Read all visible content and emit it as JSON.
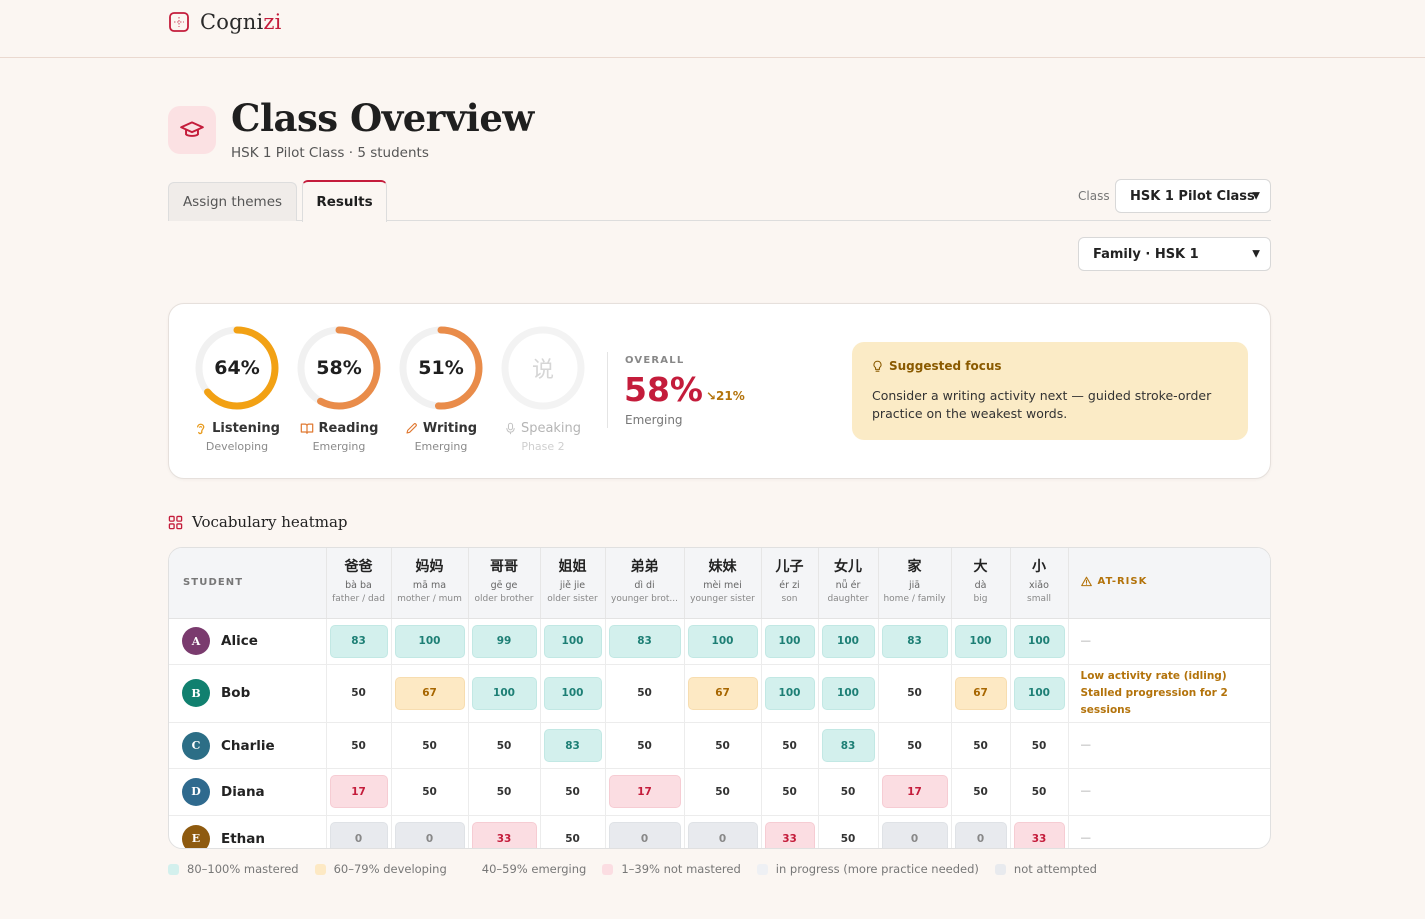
{
  "app": {
    "name_main": "Cogni",
    "name_accent": "zi"
  },
  "header": {
    "title": "Class Overview",
    "subtitle": "HSK 1 Pilot Class · 5 students"
  },
  "tabs": [
    {
      "label": "Assign themes",
      "active": false
    },
    {
      "label": "Results",
      "active": true
    }
  ],
  "filters": {
    "class_label": "Class",
    "class_value": "HSK 1 Pilot Class",
    "theme_value": "Family · HSK 1"
  },
  "skills": [
    {
      "name": "Listening",
      "pct": "64%",
      "value": 64,
      "level": "Developing",
      "color": "#f2a114",
      "icon": "ear-icon"
    },
    {
      "name": "Reading",
      "pct": "58%",
      "value": 58,
      "level": "Emerging",
      "color": "#e98c4a",
      "icon": "book-icon"
    },
    {
      "name": "Writing",
      "pct": "51%",
      "value": 51,
      "level": "Emerging",
      "color": "#e98c4a",
      "icon": "pencil-icon"
    },
    {
      "name": "Speaking",
      "pct": "说",
      "value": 0,
      "level": "Phase 2",
      "color": "#d6d6d6",
      "icon": "microphone-icon"
    }
  ],
  "overall": {
    "label": "OVERALL",
    "value": "58%",
    "trend": "↘21%",
    "level": "Emerging"
  },
  "focus": {
    "title": "Suggested focus",
    "text": "Consider a writing activity next — guided stroke-order practice on the weakest words."
  },
  "heatmap": {
    "title": "Vocabulary heatmap",
    "student_header": "STUDENT",
    "risk_header": "AT-RISK",
    "words": [
      {
        "hanzi": "爸爸",
        "pinyin": "bà ba",
        "meaning": "father / dad"
      },
      {
        "hanzi": "妈妈",
        "pinyin": "mā ma",
        "meaning": "mother / mum"
      },
      {
        "hanzi": "哥哥",
        "pinyin": "gē ge",
        "meaning": "older brother"
      },
      {
        "hanzi": "姐姐",
        "pinyin": "jiě jie",
        "meaning": "older sister"
      },
      {
        "hanzi": "弟弟",
        "pinyin": "dì di",
        "meaning": "younger brot..."
      },
      {
        "hanzi": "妹妹",
        "pinyin": "mèi mei",
        "meaning": "younger sister"
      },
      {
        "hanzi": "儿子",
        "pinyin": "ér zi",
        "meaning": "son"
      },
      {
        "hanzi": "女儿",
        "pinyin": "nǚ ér",
        "meaning": "daughter"
      },
      {
        "hanzi": "家",
        "pinyin": "jiā",
        "meaning": "home / family"
      },
      {
        "hanzi": "大",
        "pinyin": "dà",
        "meaning": "big"
      },
      {
        "hanzi": "小",
        "pinyin": "xiǎo",
        "meaning": "small"
      }
    ],
    "students": [
      {
        "initial": "A",
        "name": "Alice",
        "avatar_color": "#7a3b6e",
        "scores": [
          "83",
          "100",
          "99",
          "100",
          "83",
          "100",
          "100",
          "100",
          "83",
          "100",
          "100"
        ],
        "risk": [
          "—"
        ]
      },
      {
        "initial": "B",
        "name": "Bob",
        "avatar_color": "#11806f",
        "scores": [
          "50",
          "67",
          "100",
          "100",
          "50",
          "67",
          "100",
          "100",
          "50",
          "67",
          "100"
        ],
        "risk": [
          "Low activity rate (idling)",
          "Stalled progression for 2 sessions"
        ]
      },
      {
        "initial": "C",
        "name": "Charlie",
        "avatar_color": "#2c6e86",
        "scores": [
          "50",
          "50",
          "50",
          "83",
          "50",
          "50",
          "50",
          "83",
          "50",
          "50",
          "50"
        ],
        "risk": [
          "—"
        ]
      },
      {
        "initial": "D",
        "name": "Diana",
        "avatar_color": "#2f6a8e",
        "scores": [
          "17",
          "50",
          "50",
          "50",
          "17",
          "50",
          "50",
          "50",
          "17",
          "50",
          "50"
        ],
        "risk": [
          "—"
        ]
      },
      {
        "initial": "E",
        "name": "Ethan",
        "avatar_color": "#8e5a0f",
        "scores": [
          "0",
          "0",
          "33",
          "50",
          "0",
          "0",
          "33",
          "50",
          "0",
          "0",
          "33"
        ],
        "risk": [
          "—"
        ]
      }
    ]
  },
  "legend": [
    {
      "label": "80–100% mastered",
      "color": "#d3f0ed"
    },
    {
      "label": "60–79% developing",
      "color": "#fde9c4"
    },
    {
      "label": "40–59% emerging",
      "color": "transparent"
    },
    {
      "label": "1–39% not mastered",
      "color": "#fbdde2"
    },
    {
      "label": "in progress (more practice needed)",
      "color": "#eef0f4"
    },
    {
      "label": "not attempted",
      "color": "#e8eaee"
    }
  ]
}
